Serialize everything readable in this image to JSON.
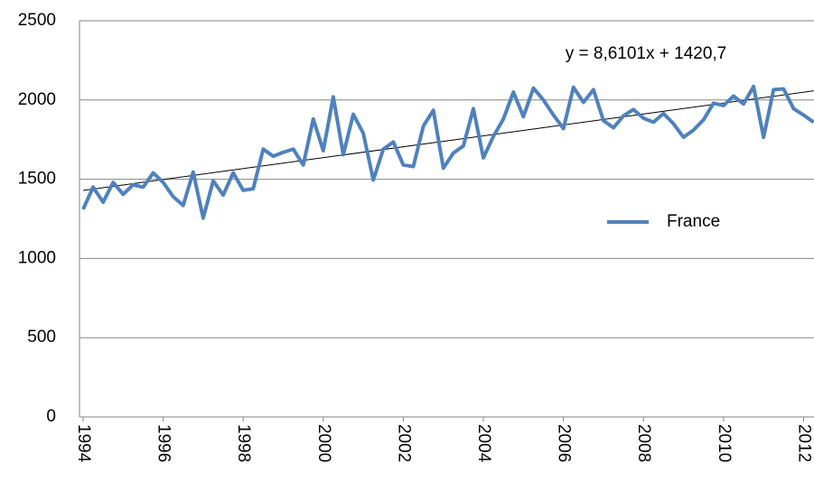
{
  "chart_data": {
    "type": "line",
    "x": [
      1994,
      1994.25,
      1994.5,
      1994.75,
      1995,
      1995.25,
      1995.5,
      1995.75,
      1996,
      1996.25,
      1996.5,
      1996.75,
      1997,
      1997.25,
      1997.5,
      1997.75,
      1998,
      1998.25,
      1998.5,
      1998.75,
      1999,
      1999.25,
      1999.5,
      1999.75,
      2000,
      2000.25,
      2000.5,
      2000.75,
      2001,
      2001.25,
      2001.5,
      2001.75,
      2002,
      2002.25,
      2002.5,
      2002.75,
      2003,
      2003.25,
      2003.5,
      2003.75,
      2004,
      2004.25,
      2004.5,
      2004.75,
      2005,
      2005.25,
      2005.5,
      2005.75,
      2006,
      2006.25,
      2006.5,
      2006.75,
      2007,
      2007.25,
      2007.5,
      2007.75,
      2008,
      2008.25,
      2008.5,
      2008.75,
      2009,
      2009.25,
      2009.5,
      2009.75,
      2010,
      2010.25,
      2010.5,
      2010.75,
      2011,
      2011.25,
      2011.5,
      2011.75,
      2012,
      2012.25
    ],
    "series": [
      {
        "name": "France",
        "color": "#4f81bd",
        "values": [
          1310,
          1450,
          1355,
          1480,
          1405,
          1465,
          1450,
          1540,
          1480,
          1390,
          1335,
          1545,
          1255,
          1490,
          1400,
          1540,
          1430,
          1440,
          1690,
          1645,
          1670,
          1690,
          1590,
          1880,
          1680,
          2020,
          1655,
          1910,
          1790,
          1495,
          1690,
          1735,
          1590,
          1580,
          1835,
          1935,
          1570,
          1665,
          1710,
          1945,
          1635,
          1770,
          1880,
          2050,
          1895,
          2075,
          2000,
          1905,
          1820,
          2080,
          1985,
          2065,
          1870,
          1825,
          1900,
          1940,
          1885,
          1860,
          1915,
          1850,
          1765,
          1810,
          1875,
          1980,
          1965,
          2025,
          1975,
          2085,
          1765,
          2065,
          2070,
          1945,
          1905,
          1860
        ]
      }
    ],
    "trendline": {
      "label": "y = 8,6101x + 1420,7",
      "slope": 8.6101,
      "intercept": 1420.7,
      "color": "#000000"
    },
    "xlim": [
      1993.91,
      2012.26
    ],
    "xticks": [
      1994,
      1996,
      1998,
      2000,
      2002,
      2004,
      2006,
      2008,
      2010,
      2012
    ],
    "ylim": [
      0,
      2500
    ],
    "yticks": [
      0,
      500,
      1000,
      1500,
      2000,
      2500
    ],
    "grid": true,
    "legend": "right"
  }
}
